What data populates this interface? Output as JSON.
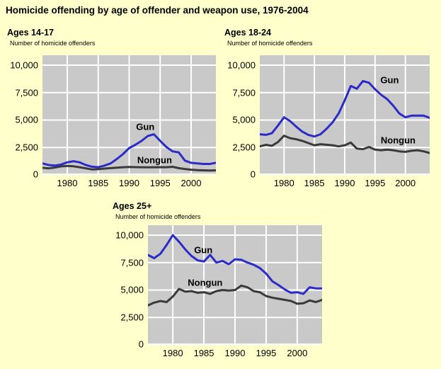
{
  "page": {
    "title": "Homicide offending by age of offender and weapon use, 1976-2004",
    "background": "#FFFFCC"
  },
  "colors": {
    "plot_bg": "#C9C9C9",
    "grid": "#FFFFFF",
    "gun": "#2B2BC8",
    "nongun": "#3A3A3A",
    "text": "#000000"
  },
  "chart_data": [
    {
      "type": "line",
      "title": "Ages 14-17",
      "ylabel": "Number of homicide offenders",
      "xlim": [
        1976,
        2004
      ],
      "ylim": [
        0,
        10900
      ],
      "grid": true,
      "legend_position": "inline-labels",
      "x": [
        1976,
        1977,
        1978,
        1979,
        1980,
        1981,
        1982,
        1983,
        1984,
        1985,
        1986,
        1987,
        1988,
        1989,
        1990,
        1991,
        1992,
        1993,
        1994,
        1995,
        1996,
        1997,
        1998,
        1999,
        2000,
        2001,
        2002,
        2003,
        2004
      ],
      "xticks": [
        1980,
        1985,
        1990,
        1995,
        2000
      ],
      "xtick_labels": [
        "1980",
        "1985",
        "1990",
        "1995",
        "2000"
      ],
      "yticks": [
        0,
        2500,
        5000,
        7500,
        10000
      ],
      "ytick_labels": [
        "0",
        "2,500",
        "5,000",
        "7,500",
        "10,000"
      ],
      "series": [
        {
          "name": "Gun",
          "color_key": "gun",
          "label_anchor": {
            "year": 1992.6,
            "value": 4400
          },
          "values": [
            1050,
            900,
            850,
            950,
            1150,
            1250,
            1150,
            900,
            750,
            700,
            850,
            1050,
            1450,
            1900,
            2450,
            2750,
            3100,
            3550,
            3700,
            3100,
            2550,
            2150,
            2050,
            1300,
            1100,
            1050,
            1000,
            1000,
            1100
          ]
        },
        {
          "name": "Nongun",
          "color_key": "nongun",
          "label_anchor": {
            "year": 1994.1,
            "value": 1350
          },
          "values": [
            650,
            600,
            680,
            780,
            820,
            790,
            700,
            600,
            500,
            520,
            580,
            620,
            660,
            700,
            720,
            710,
            700,
            690,
            700,
            710,
            700,
            740,
            620,
            540,
            480,
            440,
            420,
            400,
            420
          ]
        }
      ]
    },
    {
      "type": "line",
      "title": "Ages 18-24",
      "ylabel": "Number of homicide offenders",
      "xlim": [
        1976,
        2004
      ],
      "ylim": [
        0,
        10900
      ],
      "grid": true,
      "legend_position": "inline-labels",
      "x": [
        1976,
        1977,
        1978,
        1979,
        1980,
        1981,
        1982,
        1983,
        1984,
        1985,
        1986,
        1987,
        1988,
        1989,
        1990,
        1991,
        1992,
        1993,
        1994,
        1995,
        1996,
        1997,
        1998,
        1999,
        2000,
        2001,
        2002,
        2003,
        2004
      ],
      "xticks": [
        1980,
        1985,
        1990,
        1995,
        2000
      ],
      "xtick_labels": [
        "1980",
        "1985",
        "1990",
        "1995",
        "2000"
      ],
      "yticks": [
        0,
        2500,
        5000,
        7500,
        10000
      ],
      "ytick_labels": [
        "0",
        "2,500",
        "5,000",
        "7,500",
        "10,000"
      ],
      "series": [
        {
          "name": "Gun",
          "color_key": "gun",
          "label_anchor": {
            "year": 1997.4,
            "value": 8650
          },
          "values": [
            3700,
            3650,
            3800,
            4500,
            5250,
            4900,
            4400,
            3950,
            3650,
            3500,
            3700,
            4200,
            4800,
            5600,
            6800,
            8100,
            7850,
            8550,
            8400,
            7800,
            7300,
            6900,
            6300,
            5600,
            5250,
            5400,
            5400,
            5400,
            5200
          ]
        },
        {
          "name": "Nongun",
          "color_key": "nongun",
          "label_anchor": {
            "year": 1998.8,
            "value": 3150
          },
          "values": [
            2600,
            2750,
            2650,
            3000,
            3570,
            3350,
            3250,
            3100,
            2900,
            2700,
            2800,
            2750,
            2700,
            2600,
            2700,
            2950,
            2400,
            2350,
            2550,
            2300,
            2250,
            2300,
            2250,
            2150,
            2100,
            2200,
            2250,
            2150,
            2000
          ]
        }
      ]
    },
    {
      "type": "line",
      "title": "Ages 25+",
      "ylabel": "Number of homicide offenders",
      "xlim": [
        1976,
        2004
      ],
      "ylim": [
        0,
        10900
      ],
      "grid": true,
      "legend_position": "inline-labels",
      "x": [
        1976,
        1977,
        1978,
        1979,
        1980,
        1981,
        1982,
        1983,
        1984,
        1985,
        1986,
        1987,
        1988,
        1989,
        1990,
        1991,
        1992,
        1993,
        1994,
        1995,
        1996,
        1997,
        1998,
        1999,
        2000,
        2001,
        2002,
        2003,
        2004
      ],
      "xticks": [
        1980,
        1985,
        1990,
        1995,
        2000
      ],
      "xtick_labels": [
        "1980",
        "1985",
        "1990",
        "1995",
        "2000"
      ],
      "yticks": [
        0,
        2500,
        5000,
        7500,
        10000
      ],
      "ytick_labels": [
        "0",
        "2,500",
        "5,000",
        "7,500",
        "10,000"
      ],
      "series": [
        {
          "name": "Gun",
          "color_key": "gun",
          "label_anchor": {
            "year": 1984.9,
            "value": 8650
          },
          "values": [
            8200,
            7900,
            8300,
            9100,
            10000,
            9400,
            8700,
            8100,
            7700,
            7600,
            8200,
            7500,
            7650,
            7350,
            7800,
            7750,
            7500,
            7300,
            7000,
            6500,
            5800,
            5450,
            5050,
            4750,
            4800,
            4650,
            5250,
            5150,
            5150
          ]
        },
        {
          "name": "Nongun",
          "color_key": "nongun",
          "label_anchor": {
            "year": 1985.2,
            "value": 5700
          },
          "values": [
            3600,
            3850,
            4000,
            3900,
            4400,
            5100,
            4850,
            4900,
            4750,
            4800,
            4650,
            4900,
            5000,
            4950,
            5000,
            5400,
            5250,
            4900,
            4800,
            4450,
            4300,
            4200,
            4100,
            4000,
            3750,
            3800,
            4050,
            3900,
            4100
          ]
        }
      ]
    }
  ]
}
